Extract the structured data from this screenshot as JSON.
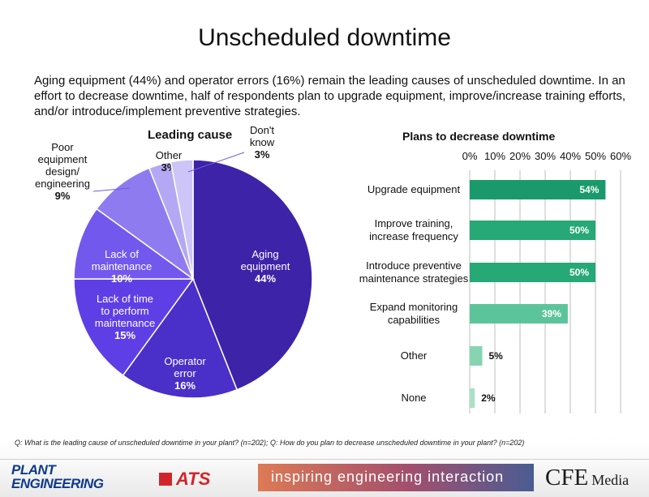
{
  "page": {
    "title": "Unscheduled downtime",
    "intro": "Aging equipment (44%) and operator errors (16%) remain the leading causes of unscheduled downtime. In an effort to decrease downtime, half of respondents plan to upgrade equipment, improve/increase training efforts, and/or introduce/implement preventive strategies.",
    "footnote": "Q: What is the leading cause of unscheduled downtime in your plant? (n=202); Q: How do you plan to decrease unscheduled downtime in your plant? (n=202)"
  },
  "footer": {
    "logo_plant": "PLANT",
    "logo_engineering": "ENGINEERING",
    "logo_ats": "ATS",
    "tagline": "inspiring engineering interaction",
    "logo_cfe": "CFE",
    "logo_media": "Media",
    "colors": {
      "ats_red": "#d0262b",
      "plant_blue": "#0e3a8c"
    }
  },
  "chart_data": [
    {
      "type": "pie",
      "title": "Leading cause",
      "slices": [
        {
          "label": [
            "Aging",
            "equipment"
          ],
          "value": 44,
          "display": "44%",
          "color": "#3d23a8"
        },
        {
          "label": [
            "Operator",
            "error"
          ],
          "value": 16,
          "display": "16%",
          "color": "#4a2fc9"
        },
        {
          "label": [
            "Lack of time",
            "to perform",
            "maintenance"
          ],
          "value": 15,
          "display": "15%",
          "color": "#5e3fe6"
        },
        {
          "label": [
            "Lack of",
            "maintenance"
          ],
          "value": 10,
          "display": "10%",
          "color": "#7358ee"
        },
        {
          "label": [
            "Poor",
            "equipment",
            "design/",
            "engineering"
          ],
          "value": 9,
          "display": "9%",
          "color": "#8f7bf0"
        },
        {
          "label": [
            "Other"
          ],
          "value": 3,
          "display": "3%",
          "color": "#b4a8f4"
        },
        {
          "label": [
            "Don't",
            "know"
          ],
          "value": 3,
          "display": "3%",
          "color": "#cdc5f7"
        }
      ]
    },
    {
      "type": "bar",
      "orientation": "horizontal",
      "title": "Plans to decrease downtime",
      "categories": [
        [
          "Upgrade equipment"
        ],
        [
          "Improve training,",
          "increase frequency"
        ],
        [
          "Introduce preventive",
          "maintenance strategies"
        ],
        [
          "Expand monitoring",
          "capabilities"
        ],
        [
          "Other"
        ],
        [
          "None"
        ]
      ],
      "values": [
        54,
        50,
        50,
        39,
        5,
        2
      ],
      "value_labels": [
        "54%",
        "50%",
        "50%",
        "39%",
        "5%",
        "2%"
      ],
      "colors": [
        "#1a9a6c",
        "#26a877",
        "#26a877",
        "#5cc49a",
        "#86d4b2",
        "#a9e0c6"
      ],
      "xlim": [
        0,
        60
      ],
      "xticks": [
        "0%",
        "10%",
        "20%",
        "30%",
        "40%",
        "50%",
        "60%"
      ]
    }
  ]
}
